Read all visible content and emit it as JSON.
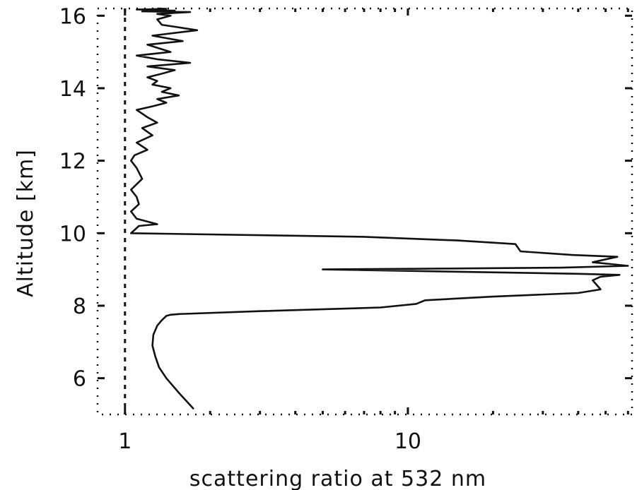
{
  "chart_data": {
    "type": "line",
    "title": "",
    "xlabel": "scattering ratio at 532 nm",
    "ylabel": "Altitude [km]",
    "xscale": "log",
    "xlim": [
      0.8,
      62
    ],
    "ylim": [
      5,
      16.2
    ],
    "grid": false,
    "x_ticks": [
      {
        "value": 1,
        "label": "1"
      },
      {
        "value": 10,
        "label": "10"
      }
    ],
    "y_ticks": [
      {
        "value": 6,
        "label": "6"
      },
      {
        "value": 8,
        "label": "8"
      },
      {
        "value": 10,
        "label": "10"
      },
      {
        "value": 12,
        "label": "12"
      },
      {
        "value": 14,
        "label": "14"
      },
      {
        "value": 16,
        "label": "16"
      }
    ],
    "reference_line": {
      "x": 1
    },
    "series": [
      {
        "name": "",
        "x": [
          1.75,
          1.55,
          1.4,
          1.32,
          1.28,
          1.25,
          1.26,
          1.3,
          1.35,
          1.4,
          1.45,
          1.55,
          3,
          8,
          10.7,
          11.5,
          20,
          40,
          48,
          45,
          48,
          56,
          40,
          5,
          35,
          60,
          45,
          55,
          38,
          25,
          24,
          15,
          7,
          1.05,
          1.12,
          1.3,
          1.1,
          1.05,
          1.12,
          1.1,
          1.05,
          1.15,
          1.1,
          1.05,
          1.08,
          1.2,
          1.1,
          1.25,
          1.15,
          1.3,
          1.2,
          1.15,
          1.1,
          1.25,
          1.4,
          1.3,
          1.55,
          1.35,
          1.45,
          1.25,
          1.3,
          1.2,
          1.35,
          1.5,
          1.2,
          1.7,
          1.3,
          1.1,
          1.45,
          1.2,
          1.6,
          1.25,
          1.8,
          1.35,
          1.3,
          1.45,
          1.3,
          1.7,
          1.15,
          1.5,
          1.2,
          1.35,
          1.1,
          1.25,
          1.4,
          1.3
        ],
        "y": [
          5.15,
          5.6,
          6.0,
          6.3,
          6.6,
          6.9,
          7.2,
          7.45,
          7.6,
          7.72,
          7.75,
          7.77,
          7.85,
          7.95,
          8.05,
          8.15,
          8.25,
          8.35,
          8.45,
          8.7,
          8.8,
          8.85,
          8.88,
          9.0,
          9.05,
          9.1,
          9.2,
          9.35,
          9.4,
          9.5,
          9.7,
          9.8,
          9.9,
          10.0,
          10.2,
          10.25,
          10.4,
          10.6,
          10.8,
          11.0,
          11.2,
          11.5,
          11.8,
          12.0,
          12.15,
          12.3,
          12.5,
          12.7,
          12.9,
          13.05,
          13.2,
          13.3,
          13.4,
          13.5,
          13.6,
          13.7,
          13.8,
          13.9,
          14.0,
          14.1,
          14.2,
          14.3,
          14.4,
          14.5,
          14.6,
          14.7,
          14.8,
          14.9,
          15.0,
          15.2,
          15.3,
          15.45,
          15.6,
          15.75,
          15.9,
          16.0,
          16.05,
          16.1,
          16.12,
          16.14,
          16.15,
          16.16,
          16.17,
          16.18,
          16.19,
          16.2
        ]
      }
    ]
  }
}
